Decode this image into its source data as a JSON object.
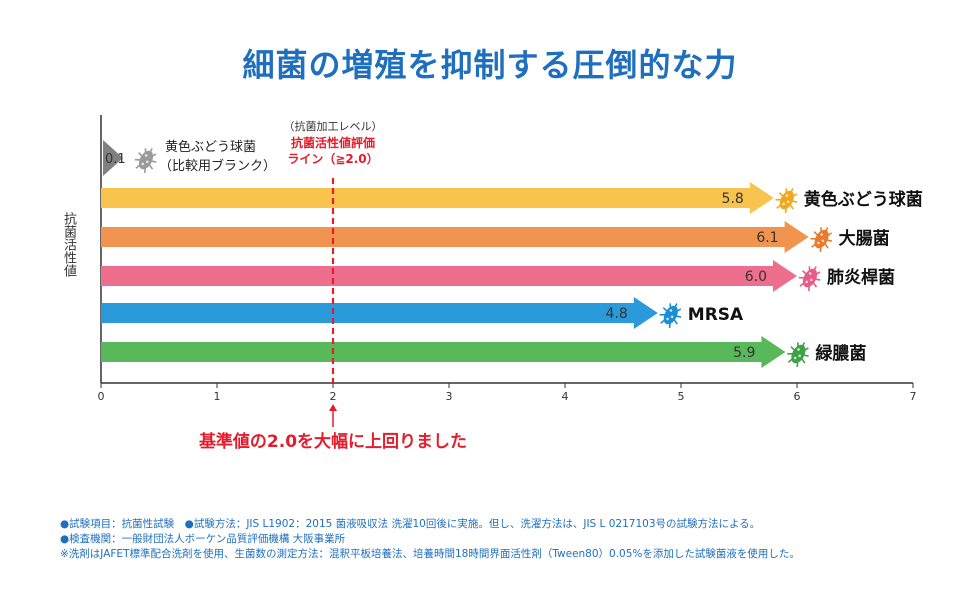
{
  "title": "細菌の増殖を抑制する圧倒的な力",
  "chart_data": {
    "type": "bar",
    "ylabel": "抗菌活性値",
    "xlim": [
      0,
      7
    ],
    "xticks": [
      0,
      1,
      2,
      3,
      4,
      5,
      6,
      7
    ],
    "grid": false,
    "blank": {
      "value": 0.1,
      "label_line1": "黄色ぶどう球菌",
      "label_line2": "（比較用ブランク）",
      "color": "#808080"
    },
    "series": [
      {
        "name": "黄色ぶどう球菌",
        "value": 5.8,
        "color": "#f8c44e",
        "icon_color": "#f2a81c"
      },
      {
        "name": "大腸菌",
        "value": 6.1,
        "color": "#f1944f",
        "icon_color": "#ea7a2c"
      },
      {
        "name": "肺炎桿菌",
        "value": 6.0,
        "color": "#ee6f8d",
        "icon_color": "#e85b88"
      },
      {
        "name": "MRSA",
        "value": 4.8,
        "color": "#2b9ada",
        "icon_color": "#1e8ed4"
      },
      {
        "name": "緑膿菌",
        "value": 5.9,
        "color": "#59b85a",
        "icon_color": "#3fa247"
      }
    ],
    "reference": {
      "value": 2.0,
      "label_top": "（抗菌加工レベル）",
      "label_line1": "抗菌活性値評価",
      "label_line2": "ライン（≧2.0）",
      "note": "基準値の2.0を大幅に上回りました",
      "color": "#e51c2c"
    }
  },
  "notes": [
    "●試験項目：抗菌性試験　●試験方法：JIS L1902：2015 菌液吸収法 洗濯10回後に実施。但し、洗濯方法は、JIS L 0217103号の試験方法による。",
    "●検査機関：一般財団法人ボーケン品質評価機構 大阪事業所",
    "※洗剤はJAFET標準配合洗剤を使用、生菌数の測定方法：混釈平板培養法、培養時間18時間界面活性剤（Tween80）0.05%を添加した試験菌液を使用した。"
  ]
}
